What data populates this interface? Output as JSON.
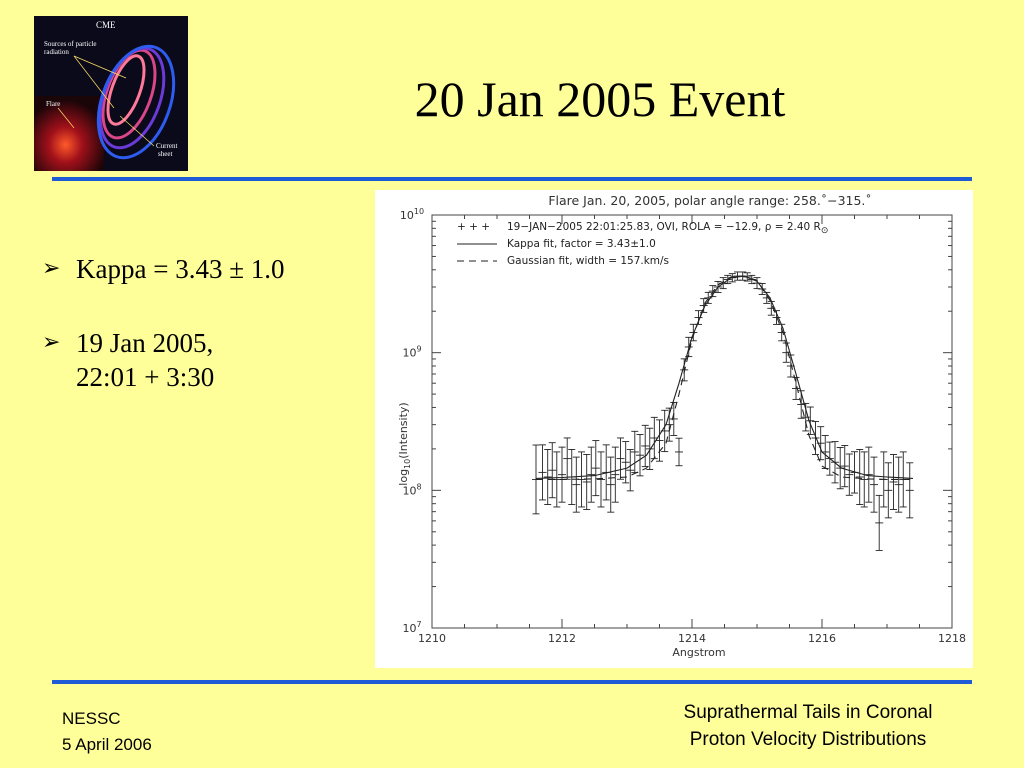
{
  "slide": {
    "title": "20 Jan 2005 Event",
    "bullets": [
      {
        "line1": "Kappa = 3.43 ± 1.0",
        "line2": ""
      },
      {
        "line1": "19 Jan 2005,",
        "line2": "22:01 + 3:30"
      }
    ],
    "footer_left": {
      "line1": "NESSC",
      "line2": "5 April 2006"
    },
    "footer_right": {
      "line1": "Suprathermal Tails in Coronal",
      "line2": "Proton Velocity Distributions"
    },
    "accent_color": "#1f5bd7",
    "background_color": "#ffff99"
  },
  "logo": {
    "title": "CME",
    "labels": [
      "Sources of particle",
      "radiation",
      "Flare",
      "Current",
      "sheet"
    ]
  },
  "chart_data": {
    "type": "scatter",
    "title": "Flare Jan. 20, 2005, polar angle range: 258.˚−315.˚",
    "xlabel": "Angstrom",
    "ylabel": "log10(Intensity)",
    "ylabel_base": "log",
    "ylabel_sub": "10",
    "ylabel_rest": "(Intensity)",
    "xlim": [
      1210,
      1218
    ],
    "ylim": [
      10000000,
      10000000000
    ],
    "yscale": "log",
    "x_ticks": [
      "1210",
      "1212",
      "1214",
      "1216",
      "1218"
    ],
    "y_ticks": [
      {
        "base": "10",
        "exp": "10",
        "value": 10000000000
      },
      {
        "base": "10",
        "exp": "9",
        "value": 1000000000
      },
      {
        "base": "10",
        "exp": "8",
        "value": 100000000
      },
      {
        "base": "10",
        "exp": "7",
        "value": 10000000
      }
    ],
    "legend": [
      {
        "marker": "+ + +",
        "text": "19−JAN−2005 22:01:25.83, OVI, ROLA = −12.9, ρ = 2.40 R",
        "sub": "⊙"
      },
      {
        "marker": "solid",
        "text": "Kappa fit, factor = 3.43±1.0"
      },
      {
        "marker": "dashed",
        "text": "Gaussian fit, width = 157.km/s"
      }
    ],
    "series": [
      {
        "name": "19−JAN−2005 22:01:25.83, OVI, ROLA = −12.9, ρ = 2.40 R⊙",
        "style": "errorbar",
        "points": [
          {
            "x": 1211.6,
            "y": 120000000.0,
            "err": 0.25
          },
          {
            "x": 1211.7,
            "y": 135000000.0,
            "err": 0.2
          },
          {
            "x": 1211.78,
            "y": 125000000.0,
            "err": 0.2
          },
          {
            "x": 1211.85,
            "y": 140000000.0,
            "err": 0.2
          },
          {
            "x": 1211.92,
            "y": 120000000.0,
            "err": 0.2
          },
          {
            "x": 1212.0,
            "y": 130000000.0,
            "err": 0.2
          },
          {
            "x": 1212.08,
            "y": 170000000.0,
            "err": 0.15
          },
          {
            "x": 1212.15,
            "y": 125000000.0,
            "err": 0.2
          },
          {
            "x": 1212.22,
            "y": 110000000.0,
            "err": 0.2
          },
          {
            "x": 1212.3,
            "y": 120000000.0,
            "err": 0.2
          },
          {
            "x": 1212.38,
            "y": 115000000.0,
            "err": 0.2
          },
          {
            "x": 1212.45,
            "y": 130000000.0,
            "err": 0.2
          },
          {
            "x": 1212.52,
            "y": 145000000.0,
            "err": 0.2
          },
          {
            "x": 1212.6,
            "y": 120000000.0,
            "err": 0.2
          },
          {
            "x": 1212.68,
            "y": 135000000.0,
            "err": 0.2
          },
          {
            "x": 1212.75,
            "y": 110000000.0,
            "err": 0.2
          },
          {
            "x": 1212.82,
            "y": 130000000.0,
            "err": 0.2
          },
          {
            "x": 1212.9,
            "y": 170000000.0,
            "err": 0.15
          },
          {
            "x": 1212.98,
            "y": 160000000.0,
            "err": 0.15
          },
          {
            "x": 1213.05,
            "y": 140000000.0,
            "err": 0.15
          },
          {
            "x": 1213.12,
            "y": 190000000.0,
            "err": 0.15
          },
          {
            "x": 1213.2,
            "y": 180000000.0,
            "err": 0.15
          },
          {
            "x": 1213.28,
            "y": 210000000.0,
            "err": 0.15
          },
          {
            "x": 1213.35,
            "y": 200000000.0,
            "err": 0.15
          },
          {
            "x": 1213.42,
            "y": 240000000.0,
            "err": 0.15
          },
          {
            "x": 1213.5,
            "y": 230000000.0,
            "err": 0.15
          },
          {
            "x": 1213.58,
            "y": 270000000.0,
            "err": 0.15
          },
          {
            "x": 1213.65,
            "y": 300000000.0,
            "err": 0.12
          },
          {
            "x": 1213.72,
            "y": 330000000.0,
            "err": 0.12
          },
          {
            "x": 1213.8,
            "y": 190000000.0,
            "err": 0.1
          },
          {
            "x": 1213.88,
            "y": 750000000.0,
            "err": 0.08
          },
          {
            "x": 1213.95,
            "y": 1100000000.0,
            "err": 0.07
          },
          {
            "x": 1214.02,
            "y": 1400000000.0,
            "err": 0.06
          },
          {
            "x": 1214.1,
            "y": 1800000000.0,
            "err": 0.05
          },
          {
            "x": 1214.18,
            "y": 2200000000.0,
            "err": 0.05
          },
          {
            "x": 1214.25,
            "y": 2500000000.0,
            "err": 0.04
          },
          {
            "x": 1214.32,
            "y": 2800000000.0,
            "err": 0.04
          },
          {
            "x": 1214.4,
            "y": 3000000000.0,
            "err": 0.04
          },
          {
            "x": 1214.48,
            "y": 3200000000.0,
            "err": 0.04
          },
          {
            "x": 1214.55,
            "y": 3400000000.0,
            "err": 0.03
          },
          {
            "x": 1214.62,
            "y": 3500000000.0,
            "err": 0.03
          },
          {
            "x": 1214.7,
            "y": 3600000000.0,
            "err": 0.03
          },
          {
            "x": 1214.78,
            "y": 3600000000.0,
            "err": 0.03
          },
          {
            "x": 1214.85,
            "y": 3550000000.0,
            "err": 0.03
          },
          {
            "x": 1214.92,
            "y": 3400000000.0,
            "err": 0.03
          },
          {
            "x": 1215.0,
            "y": 3200000000.0,
            "err": 0.04
          },
          {
            "x": 1215.08,
            "y": 2900000000.0,
            "err": 0.04
          },
          {
            "x": 1215.15,
            "y": 2500000000.0,
            "err": 0.04
          },
          {
            "x": 1215.22,
            "y": 2100000000.0,
            "err": 0.05
          },
          {
            "x": 1215.3,
            "y": 1800000000.0,
            "err": 0.05
          },
          {
            "x": 1215.38,
            "y": 1400000000.0,
            "err": 0.06
          },
          {
            "x": 1215.45,
            "y": 1000000000.0,
            "err": 0.07
          },
          {
            "x": 1215.52,
            "y": 800000000.0,
            "err": 0.08
          },
          {
            "x": 1215.6,
            "y": 550000000.0,
            "err": 0.08
          },
          {
            "x": 1215.68,
            "y": 420000000.0,
            "err": 0.1
          },
          {
            "x": 1215.75,
            "y": 340000000.0,
            "err": 0.1
          },
          {
            "x": 1215.82,
            "y": 320000000.0,
            "err": 0.1
          },
          {
            "x": 1215.9,
            "y": 240000000.0,
            "err": 0.12
          },
          {
            "x": 1215.98,
            "y": 220000000.0,
            "err": 0.12
          },
          {
            "x": 1216.05,
            "y": 190000000.0,
            "err": 0.12
          },
          {
            "x": 1216.12,
            "y": 170000000.0,
            "err": 0.12
          },
          {
            "x": 1216.2,
            "y": 160000000.0,
            "err": 0.15
          },
          {
            "x": 1216.28,
            "y": 145000000.0,
            "err": 0.15
          },
          {
            "x": 1216.35,
            "y": 150000000.0,
            "err": 0.15
          },
          {
            "x": 1216.42,
            "y": 130000000.0,
            "err": 0.15
          },
          {
            "x": 1216.5,
            "y": 135000000.0,
            "err": 0.15
          },
          {
            "x": 1216.58,
            "y": 125000000.0,
            "err": 0.2
          },
          {
            "x": 1216.65,
            "y": 120000000.0,
            "err": 0.2
          },
          {
            "x": 1216.72,
            "y": 130000000.0,
            "err": 0.2
          },
          {
            "x": 1216.8,
            "y": 110000000.0,
            "err": 0.2
          },
          {
            "x": 1216.88,
            "y": 58000000.0,
            "err": 0.2
          },
          {
            "x": 1216.95,
            "y": 120000000.0,
            "err": 0.2
          },
          {
            "x": 1217.02,
            "y": 100000000.0,
            "err": 0.2
          },
          {
            "x": 1217.1,
            "y": 115000000.0,
            "err": 0.2
          },
          {
            "x": 1217.18,
            "y": 110000000.0,
            "err": 0.2
          },
          {
            "x": 1217.25,
            "y": 120000000.0,
            "err": 0.2
          },
          {
            "x": 1217.35,
            "y": 100000000.0,
            "err": 0.2
          }
        ]
      },
      {
        "name": "Kappa fit, factor = 3.43±1.0",
        "style": "solid",
        "x": [
          1211.6,
          1212.0,
          1212.5,
          1213.0,
          1213.3,
          1213.6,
          1213.8,
          1214.0,
          1214.2,
          1214.4,
          1214.6,
          1214.8,
          1215.0,
          1215.2,
          1215.4,
          1215.6,
          1215.8,
          1216.0,
          1216.3,
          1216.7,
          1217.0,
          1217.4
        ],
        "y": [
          122000000.0,
          124000000.0,
          128000000.0,
          145000000.0,
          180000000.0,
          300000000.0,
          600000000.0,
          1300000000.0,
          2200000000.0,
          3000000000.0,
          3500000000.0,
          3600000000.0,
          3300000000.0,
          2500000000.0,
          1500000000.0,
          700000000.0,
          320000000.0,
          190000000.0,
          145000000.0,
          128000000.0,
          125000000.0,
          122000000.0
        ]
      },
      {
        "name": "Gaussian fit, width = 157.km/s",
        "style": "dashed",
        "x": [
          1211.6,
          1212.0,
          1212.5,
          1213.0,
          1213.3,
          1213.6,
          1213.8,
          1214.0,
          1214.2,
          1214.4,
          1214.6,
          1214.8,
          1215.0,
          1215.2,
          1215.4,
          1215.6,
          1215.8,
          1216.0,
          1216.3,
          1216.7,
          1217.0,
          1217.4
        ],
        "y": [
          120000000.0,
          120000000.0,
          121000000.0,
          125000000.0,
          145000000.0,
          220000000.0,
          500000000.0,
          1250000000.0,
          2300000000.0,
          3100000000.0,
          3550000000.0,
          3600000000.0,
          3350000000.0,
          2400000000.0,
          1400000000.0,
          600000000.0,
          250000000.0,
          150000000.0,
          125000000.0,
          121000000.0,
          120000000.0,
          120000000.0
        ]
      }
    ]
  }
}
